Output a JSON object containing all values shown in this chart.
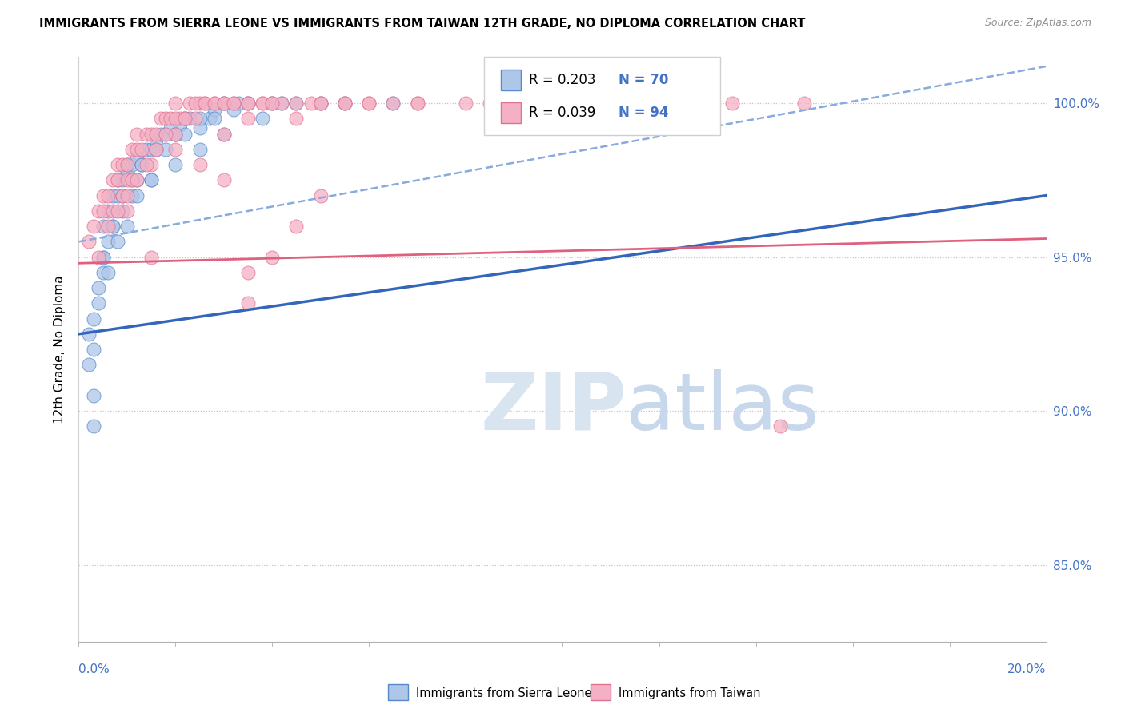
{
  "title": "IMMIGRANTS FROM SIERRA LEONE VS IMMIGRANTS FROM TAIWAN 12TH GRADE, NO DIPLOMA CORRELATION CHART",
  "source": "Source: ZipAtlas.com",
  "ylabel": "12th Grade, No Diploma",
  "legend_blue_r": "R = 0.203",
  "legend_blue_n": "N = 70",
  "legend_pink_r": "R = 0.039",
  "legend_pink_n": "N = 94",
  "legend_label_blue": "Immigrants from Sierra Leone",
  "legend_label_pink": "Immigrants from Taiwan",
  "blue_fill": "#aec6e8",
  "pink_fill": "#f4b0c4",
  "blue_edge": "#5588cc",
  "pink_edge": "#e07090",
  "trend_blue_color": "#3366bb",
  "trend_pink_color": "#e06080",
  "dash_blue_color": "#88aadd",
  "text_blue": "#4472c4",
  "watermark_zip_color": "#d8e4f0",
  "watermark_atlas_color": "#c8d8ec",
  "xmin": 0.0,
  "xmax": 20.0,
  "ymin": 82.5,
  "ymax": 101.5,
  "yticks": [
    85.0,
    90.0,
    95.0,
    100.0
  ],
  "ytick_labels": [
    "85.0%",
    "90.0%",
    "95.0%",
    "100.0%"
  ],
  "blue_trend_x0": 0.0,
  "blue_trend_y0": 92.5,
  "blue_trend_x1": 20.0,
  "blue_trend_y1": 97.0,
  "dash_trend_x0": 0.0,
  "dash_trend_y0": 95.5,
  "dash_trend_x1": 20.0,
  "dash_trend_y1": 101.2,
  "pink_trend_x0": 0.0,
  "pink_trend_y0": 94.8,
  "pink_trend_x1": 20.0,
  "pink_trend_y1": 95.6,
  "blue_x": [
    0.2,
    0.2,
    0.3,
    0.3,
    0.3,
    0.4,
    0.4,
    0.5,
    0.5,
    0.5,
    0.6,
    0.6,
    0.7,
    0.7,
    0.8,
    0.8,
    0.9,
    0.9,
    1.0,
    1.0,
    1.1,
    1.1,
    1.2,
    1.2,
    1.3,
    1.4,
    1.5,
    1.5,
    1.6,
    1.7,
    1.8,
    1.9,
    2.0,
    2.1,
    2.2,
    2.3,
    2.5,
    2.7,
    2.8,
    3.0,
    3.2,
    3.5,
    3.8,
    4.0,
    4.5,
    5.0,
    1.0,
    1.2,
    0.8,
    0.6,
    1.8,
    2.5,
    0.3,
    0.5,
    0.7,
    0.9,
    1.1,
    1.3,
    1.6,
    2.0,
    2.2,
    2.8,
    3.3,
    4.2,
    5.5,
    6.5,
    3.0,
    1.5,
    2.0,
    2.5
  ],
  "blue_y": [
    92.5,
    91.5,
    93.0,
    90.5,
    89.5,
    93.5,
    94.0,
    95.0,
    96.0,
    94.5,
    95.5,
    96.5,
    97.0,
    96.0,
    97.0,
    97.5,
    97.5,
    96.5,
    97.8,
    98.0,
    98.0,
    97.0,
    98.2,
    97.5,
    98.0,
    98.5,
    98.5,
    97.5,
    98.8,
    99.0,
    99.0,
    99.2,
    99.0,
    99.3,
    99.0,
    99.5,
    99.2,
    99.5,
    99.8,
    100.0,
    99.8,
    100.0,
    99.5,
    100.0,
    100.0,
    100.0,
    96.0,
    97.0,
    95.5,
    94.5,
    98.5,
    99.5,
    92.0,
    95.0,
    96.0,
    97.0,
    97.5,
    98.0,
    98.5,
    99.0,
    99.5,
    99.5,
    100.0,
    100.0,
    100.0,
    100.0,
    99.0,
    97.5,
    98.0,
    98.5
  ],
  "pink_x": [
    0.2,
    0.3,
    0.4,
    0.4,
    0.5,
    0.5,
    0.6,
    0.7,
    0.7,
    0.8,
    0.8,
    0.9,
    0.9,
    1.0,
    1.0,
    1.0,
    1.1,
    1.1,
    1.2,
    1.2,
    1.3,
    1.4,
    1.5,
    1.5,
    1.6,
    1.7,
    1.8,
    1.9,
    2.0,
    2.0,
    2.1,
    2.2,
    2.3,
    2.4,
    2.5,
    2.6,
    2.8,
    3.0,
    3.0,
    3.2,
    3.5,
    3.5,
    3.8,
    4.0,
    4.2,
    4.5,
    4.8,
    5.0,
    5.5,
    6.0,
    6.5,
    7.0,
    8.0,
    9.0,
    10.0,
    11.0,
    12.0,
    13.5,
    15.0,
    0.6,
    0.8,
    1.0,
    1.2,
    1.4,
    1.6,
    1.8,
    2.0,
    2.2,
    2.4,
    2.6,
    2.8,
    3.0,
    3.2,
    3.5,
    3.8,
    4.0,
    4.5,
    5.0,
    5.5,
    6.0,
    7.0,
    8.5,
    10.5,
    13.0,
    3.5,
    3.5,
    4.0,
    4.5,
    5.0,
    2.5,
    1.5,
    3.0,
    14.5,
    2.0
  ],
  "pink_y": [
    95.5,
    96.0,
    95.0,
    96.5,
    96.5,
    97.0,
    97.0,
    97.5,
    96.5,
    97.5,
    98.0,
    98.0,
    97.0,
    98.0,
    97.5,
    96.5,
    98.5,
    97.5,
    98.5,
    99.0,
    98.5,
    99.0,
    99.0,
    98.0,
    99.0,
    99.5,
    99.5,
    99.5,
    99.0,
    100.0,
    99.5,
    99.5,
    100.0,
    99.5,
    100.0,
    100.0,
    100.0,
    100.0,
    99.0,
    100.0,
    99.5,
    100.0,
    100.0,
    100.0,
    100.0,
    99.5,
    100.0,
    100.0,
    100.0,
    100.0,
    100.0,
    100.0,
    100.0,
    100.0,
    100.0,
    100.0,
    100.0,
    100.0,
    100.0,
    96.0,
    96.5,
    97.0,
    97.5,
    98.0,
    98.5,
    99.0,
    99.5,
    99.5,
    100.0,
    100.0,
    100.0,
    100.0,
    100.0,
    100.0,
    100.0,
    100.0,
    100.0,
    100.0,
    100.0,
    100.0,
    100.0,
    100.0,
    100.0,
    100.0,
    93.5,
    94.5,
    95.0,
    96.0,
    97.0,
    98.0,
    95.0,
    97.5,
    89.5,
    98.5
  ]
}
